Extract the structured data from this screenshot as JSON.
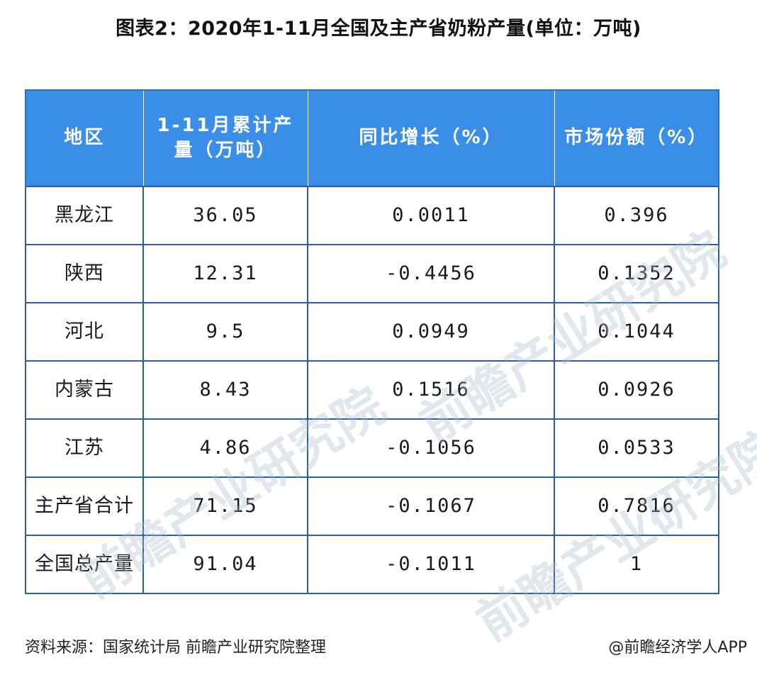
{
  "title": "图表2：2020年1-11月全国及主产省奶粉产量(单位：万吨)",
  "watermark": "前瞻产业研究院",
  "chart_data": {
    "type": "table",
    "title": "图表2：2020年1-11月全国及主产省奶粉产量(单位：万吨)",
    "columns": [
      "地区",
      "1-11月累计产量（万吨）",
      "同比增长（%）",
      "市场份额（%）"
    ],
    "rows": [
      [
        "黑龙江",
        "36.05",
        "0.0011",
        "0.396"
      ],
      [
        "陕西",
        "12.31",
        "-0.4456",
        "0.1352"
      ],
      [
        "河北",
        "9.5",
        "0.0949",
        "0.1044"
      ],
      [
        "内蒙古",
        "8.43",
        "0.1516",
        "0.0926"
      ],
      [
        "江苏",
        "4.86",
        "-0.1056",
        "0.0533"
      ],
      [
        "主产省合计",
        "71.15",
        "-0.1067",
        "0.7816"
      ],
      [
        "全国总产量",
        "91.04",
        "-0.1011",
        "1"
      ]
    ]
  },
  "footer": {
    "source": "资料来源：国家统计局 前瞻产业研究院整理",
    "credit": "@前瞻经济学人APP"
  }
}
